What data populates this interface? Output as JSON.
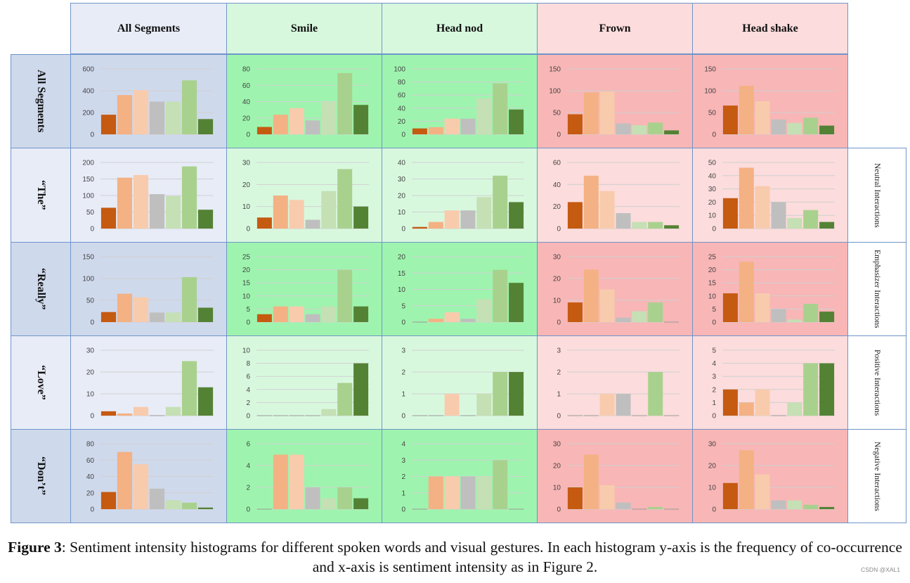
{
  "colors": {
    "border": "#6f95c9",
    "header_bg": {
      "all": "#e8ecf7",
      "pos": "#d8f8de",
      "neg": "#fcdcdc"
    },
    "row_label_bg": {
      "dark": "#cfd9ec",
      "light": "#e8ecf7"
    },
    "cell_bg": {
      "all": {
        "dark": "#cfd9ec",
        "light": "#e8ecf7"
      },
      "pos": {
        "dark": "#9ef4ae",
        "light": "#d8f8de"
      },
      "neg": {
        "dark": "#f8b6b6",
        "light": "#fcdcdc"
      }
    },
    "bars": [
      "#c55a11",
      "#f4b183",
      "#f8cbad",
      "#bfbfbf",
      "#c5e0b4",
      "#a9d18e",
      "#548235"
    ],
    "gridline": "#d0d0d0"
  },
  "columns": [
    "All Segments",
    "Smile",
    "Head nod",
    "Frown",
    "Head shake"
  ],
  "rows": [
    "All Segments",
    "“The”",
    "“Really”",
    "“Love”",
    "“Don’t”"
  ],
  "side_labels": [
    "Neutral Interactions",
    "Emphasizer Interactions",
    "Positive Interactions",
    "Negative Interactions"
  ],
  "caption": {
    "label": "Figure 3",
    "text": ": Sentiment intensity histograms for different spoken words and visual gestures. In each histogram y-axis is the frequency of co-occurrence and x-axis is sentiment intensity as in Figure 2."
  },
  "watermark": "CSDN @XAL1",
  "chart_data": {
    "type": "bar",
    "description_axes": {
      "x": "sentiment intensity (7 bins)",
      "y": "frequency of co-occurrence"
    },
    "grid": [
      [
        {
          "ymax": 600,
          "ticks": [
            0,
            200,
            400,
            600
          ],
          "values": [
            180,
            360,
            405,
            300,
            300,
            495,
            140
          ]
        },
        {
          "ymax": 80,
          "ticks": [
            0,
            20,
            40,
            60,
            80
          ],
          "values": [
            9,
            24,
            32,
            17,
            40,
            75,
            36
          ]
        },
        {
          "ymax": 100,
          "ticks": [
            0,
            20,
            40,
            60,
            80,
            100
          ],
          "values": [
            9,
            11,
            24,
            24,
            55,
            78,
            38
          ]
        },
        {
          "ymax": 150,
          "ticks": [
            0,
            50,
            100,
            150
          ],
          "values": [
            46,
            96,
            98,
            25,
            21,
            27,
            9
          ]
        },
        {
          "ymax": 150,
          "ticks": [
            0,
            50,
            100,
            150
          ],
          "values": [
            66,
            111,
            76,
            34,
            26,
            38,
            20
          ]
        }
      ],
      [
        {
          "ymax": 200,
          "ticks": [
            0,
            50,
            100,
            150,
            200
          ],
          "values": [
            63,
            154,
            162,
            104,
            98,
            188,
            57
          ]
        },
        {
          "ymax": 30,
          "ticks": [
            0,
            10,
            20,
            30
          ],
          "values": [
            5,
            15,
            13,
            4,
            17,
            27,
            10
          ]
        },
        {
          "ymax": 40,
          "ticks": [
            0,
            10,
            20,
            30,
            40
          ],
          "values": [
            1,
            4,
            11,
            11,
            19,
            32,
            16
          ]
        },
        {
          "ymax": 60,
          "ticks": [
            0,
            20,
            40,
            60
          ],
          "values": [
            24,
            48,
            34,
            14,
            6,
            6,
            3
          ]
        },
        {
          "ymax": 50,
          "ticks": [
            0,
            10,
            20,
            30,
            40,
            50
          ],
          "values": [
            23,
            46,
            32,
            20,
            8,
            14,
            5
          ]
        }
      ],
      [
        {
          "ymax": 150,
          "ticks": [
            0,
            50,
            100,
            150
          ],
          "values": [
            23,
            65,
            57,
            22,
            22,
            103,
            33
          ]
        },
        {
          "ymax": 25,
          "ticks": [
            0,
            5,
            10,
            15,
            20,
            25
          ],
          "values": [
            3,
            6,
            6,
            3,
            6,
            20,
            6
          ]
        },
        {
          "ymax": 20,
          "ticks": [
            0,
            5,
            10,
            15,
            20
          ],
          "values": [
            0,
            1,
            3,
            1,
            7,
            16,
            12
          ]
        },
        {
          "ymax": 30,
          "ticks": [
            0,
            10,
            20,
            30
          ],
          "values": [
            9,
            24,
            15,
            2,
            5,
            9,
            0
          ]
        },
        {
          "ymax": 25,
          "ticks": [
            0,
            5,
            10,
            15,
            20,
            25
          ],
          "values": [
            11,
            23,
            11,
            5,
            1,
            7,
            4
          ]
        }
      ],
      [
        {
          "ymax": 30,
          "ticks": [
            0,
            10,
            20,
            30
          ],
          "values": [
            2,
            1,
            4,
            0,
            4,
            25,
            13
          ]
        },
        {
          "ymax": 10,
          "ticks": [
            0,
            2,
            4,
            6,
            8,
            10
          ],
          "values": [
            0,
            0,
            0,
            0,
            1,
            5,
            8
          ]
        },
        {
          "ymax": 3,
          "ticks": [
            0,
            1,
            2,
            3
          ],
          "values": [
            0,
            0,
            1,
            0,
            1,
            2,
            2
          ]
        },
        {
          "ymax": 3,
          "ticks": [
            0,
            1,
            2,
            3
          ],
          "values": [
            0,
            0,
            1,
            1,
            0,
            2,
            0
          ]
        },
        {
          "ymax": 5,
          "ticks": [
            0,
            1,
            2,
            3,
            4,
            5
          ],
          "values": [
            2,
            1,
            2,
            0,
            1,
            4,
            4
          ]
        }
      ],
      [
        {
          "ymax": 80,
          "ticks": [
            0,
            20,
            40,
            60,
            80
          ],
          "values": [
            21,
            70,
            55,
            25,
            11,
            8,
            2
          ]
        },
        {
          "ymax": 6,
          "ticks": [
            0,
            2,
            4,
            6
          ],
          "values": [
            0,
            5,
            5,
            2,
            1,
            2,
            1
          ]
        },
        {
          "ymax": 4,
          "ticks": [
            0,
            1,
            2,
            3,
            4
          ],
          "values": [
            0,
            2,
            2,
            2,
            2,
            3,
            0
          ]
        },
        {
          "ymax": 30,
          "ticks": [
            0,
            10,
            20,
            30
          ],
          "values": [
            10,
            25,
            11,
            3,
            0,
            1,
            0
          ]
        },
        {
          "ymax": 30,
          "ticks": [
            0,
            10,
            20,
            30
          ],
          "values": [
            12,
            27,
            16,
            4,
            4,
            2,
            1
          ]
        }
      ]
    ]
  }
}
